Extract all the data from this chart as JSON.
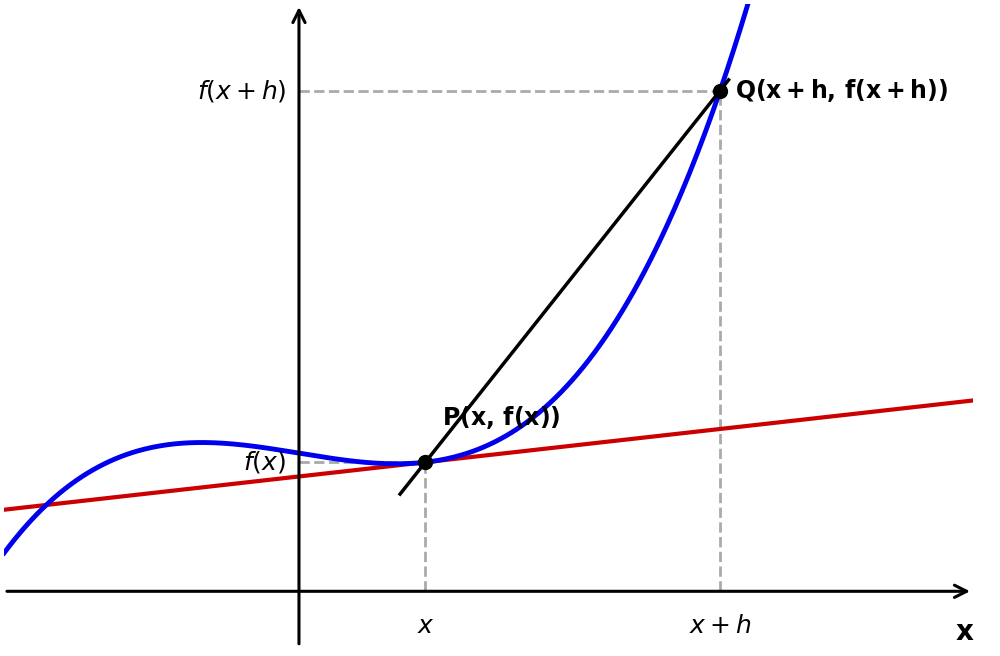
{
  "bg_color": "#ffffff",
  "curve_color": "#0000ee",
  "secant_color": "#000000",
  "tangent_color": "#cc0000",
  "dashed_color": "#aaaaaa",
  "axis_color": "#000000",
  "point_color": "#000000",
  "figsize": [
    10.0,
    6.56
  ],
  "dpi": 100,
  "label_fx": "$f(x)$",
  "label_fxh": "$f(x+h)$",
  "label_x": "$x$",
  "label_xh": "$x+h$",
  "label_P": "$\\mathbf{P(x,\\,f(x))}$",
  "label_Q": "$\\mathbf{Q(x+h,\\,f(x+h))}$",
  "label_xaxis": "$\\mathbf{x}$"
}
